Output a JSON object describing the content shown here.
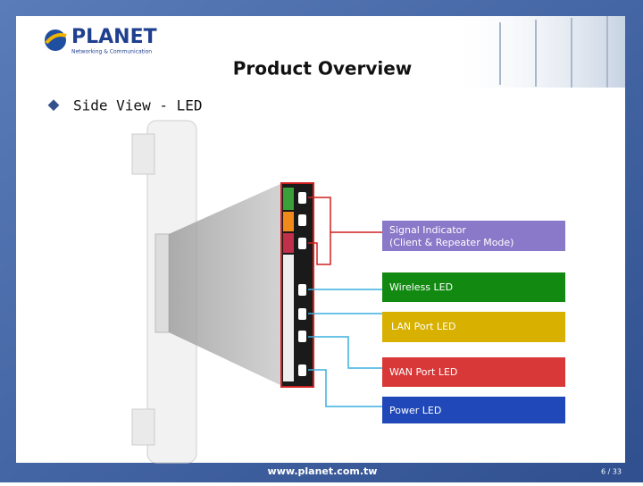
{
  "header": {
    "logo": "PLANET",
    "tagline": "Networking & Communication",
    "title": "Product Overview"
  },
  "bullet": "Side View - LED",
  "labels": {
    "signal": "Signal Indicator",
    "signal_note": "(Client & Repeater Mode)",
    "wireless": "Wireless LED",
    "lan": "LAN Port LED",
    "wan": "WAN Port LED",
    "power": "Power LED"
  },
  "footer": {
    "url": "www.planet.com.tw",
    "page": "6 / 33"
  }
}
